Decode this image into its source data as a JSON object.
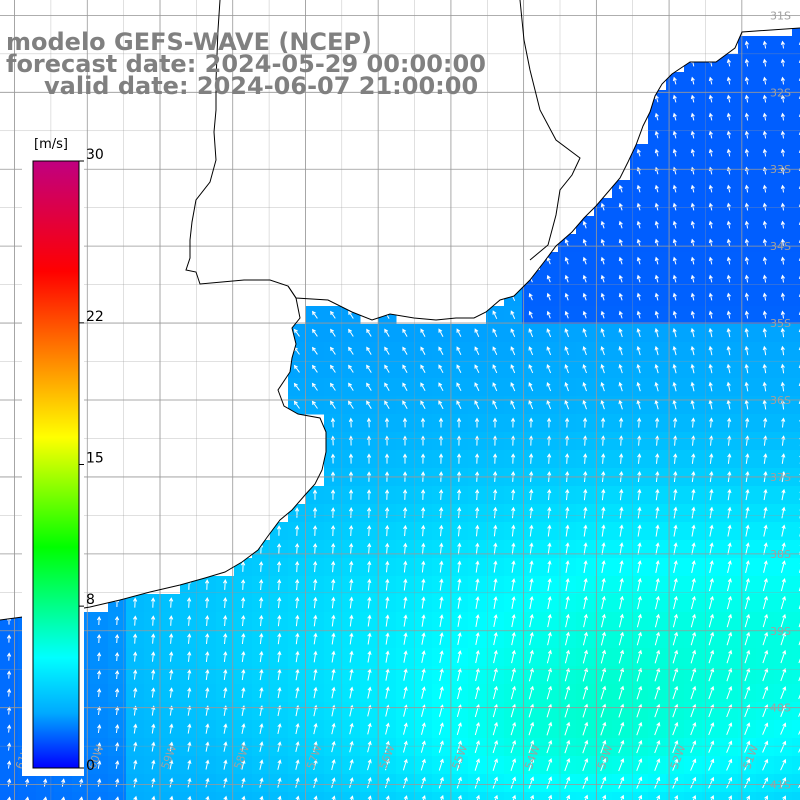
{
  "title": {
    "model": "modelo GEFS-WAVE (NCEP)",
    "forecast": "forecast date: 2024-05-29 00:00:00",
    "valid": "valid date: 2024-06-07 21:00:00"
  },
  "colorbar": {
    "unit": "[m/s]",
    "ticks": [
      "30",
      "22",
      "15",
      "8",
      "0"
    ],
    "tick_values": [
      30,
      22,
      15,
      8,
      0
    ],
    "range": [
      0,
      30
    ],
    "stops": [
      "#0000ff",
      "#00aaff",
      "#00ffff",
      "#00ff80",
      "#00ff00",
      "#80ff00",
      "#ffff00",
      "#ffaa00",
      "#ff5500",
      "#ff0000",
      "#e00040",
      "#c00080"
    ]
  },
  "map": {
    "lat_labels": [
      "31S",
      "32S",
      "33S",
      "34S",
      "35S",
      "36S",
      "37S",
      "38S",
      "39S",
      "40S",
      "41S"
    ],
    "lat_values": [
      -31,
      -32,
      -33,
      -34,
      -35,
      -36,
      -37,
      -38,
      -39,
      -40,
      -41
    ],
    "lon_labels": [
      "61W",
      "60W",
      "59W",
      "58W",
      "57W",
      "56W",
      "55W",
      "54W",
      "53W",
      "52W",
      "51W"
    ],
    "lon_values": [
      -61,
      -60,
      -59,
      -58,
      -57,
      -56,
      -55,
      -54,
      -53,
      -52,
      -51
    ],
    "lon_range": [
      -61.2,
      -50.2
    ],
    "lat_range": [
      -41.2,
      -30.8
    ],
    "field": "wind speed and direction",
    "land_color": "#ffffff",
    "coast_color": "#000000",
    "grid_color": "#999999",
    "arrow_color": "#ffffff"
  }
}
